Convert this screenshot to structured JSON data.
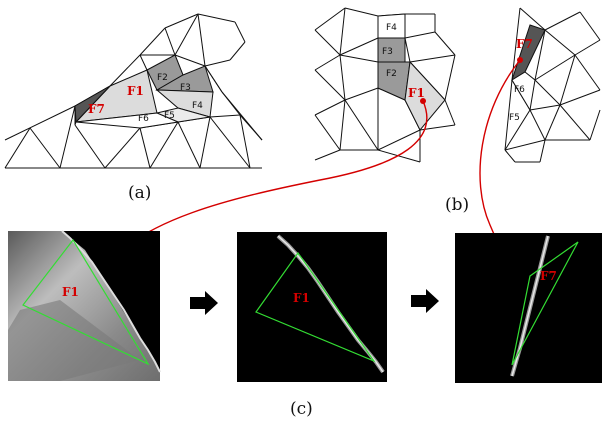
{
  "captions": {
    "a": "(a)",
    "b": "(b)",
    "c": "(c)"
  },
  "panel_a": {
    "faces": [
      {
        "label": "F1",
        "fill": "#dcdcdc",
        "emph": true
      },
      {
        "label": "F2",
        "fill": "#9a9a9a",
        "emph": false
      },
      {
        "label": "F3",
        "fill": "#9a9a9a",
        "emph": false
      },
      {
        "label": "F4",
        "fill": "#dcdcdc",
        "emph": false
      },
      {
        "label": "F5",
        "fill": "#ececec",
        "emph": false
      },
      {
        "label": "F6",
        "fill": "#ffffff",
        "emph": false
      },
      {
        "label": "F7",
        "fill": "#555555",
        "emph": true
      }
    ]
  },
  "panel_b": {
    "left_faces": [
      {
        "label": "F4",
        "fill": "#ffffff",
        "emph": false
      },
      {
        "label": "F3",
        "fill": "#9a9a9a",
        "emph": false
      },
      {
        "label": "F2",
        "fill": "#9a9a9a",
        "emph": false
      },
      {
        "label": "F1",
        "fill": "#dcdcdc",
        "emph": true
      }
    ],
    "right_faces": [
      {
        "label": "F7",
        "fill": "#555555",
        "emph": true
      },
      {
        "label": "F6",
        "fill": "#ffffff",
        "emph": false
      },
      {
        "label": "F5",
        "fill": "#ffffff",
        "emph": false
      }
    ]
  },
  "panel_c": {
    "images": [
      {
        "label": "F1"
      },
      {
        "label": "F1"
      },
      {
        "label": "F7"
      }
    ]
  },
  "colors": {
    "accent": "#d40000",
    "overlay": "#33dd33",
    "mesh": "#111111"
  }
}
